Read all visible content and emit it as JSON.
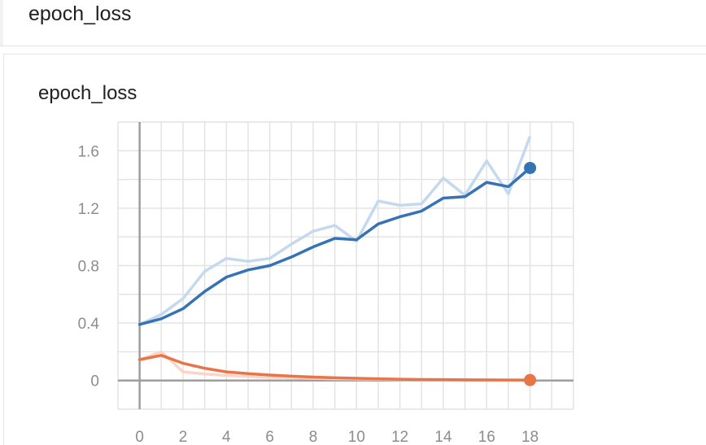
{
  "header": {
    "title": "epoch_loss"
  },
  "card": {
    "title": "epoch_loss"
  },
  "chart_data": {
    "type": "line",
    "title": "epoch_loss",
    "xlabel": "",
    "ylabel": "",
    "xlim": [
      -1,
      20
    ],
    "ylim": [
      -0.2,
      1.8
    ],
    "x_ticks": [
      0,
      2,
      4,
      6,
      8,
      10,
      12,
      14,
      16,
      18
    ],
    "y_ticks": [
      0,
      0.4,
      0.8,
      1.2,
      1.6
    ],
    "x_tick_labels": [
      "0",
      "2",
      "4",
      "6",
      "8",
      "10",
      "12",
      "14",
      "16",
      "18"
    ],
    "y_tick_labels": [
      "0",
      "0.4",
      "0.8",
      "1.2",
      "1.6"
    ],
    "grid": true,
    "legend": "none",
    "series": [
      {
        "color": "#3673b5",
        "raw_color": "#c5d9ee",
        "x": [
          0,
          1,
          2,
          3,
          4,
          5,
          6,
          7,
          8,
          9,
          10,
          11,
          12,
          13,
          14,
          15,
          16,
          17,
          18
        ],
        "values": [
          0.39,
          0.43,
          0.5,
          0.62,
          0.72,
          0.77,
          0.8,
          0.86,
          0.93,
          0.99,
          0.98,
          1.09,
          1.14,
          1.18,
          1.27,
          1.28,
          1.38,
          1.35,
          1.48
        ],
        "raw_values": [
          0.39,
          0.46,
          0.57,
          0.76,
          0.85,
          0.83,
          0.85,
          0.95,
          1.04,
          1.08,
          0.97,
          1.25,
          1.22,
          1.23,
          1.41,
          1.29,
          1.53,
          1.3,
          1.7
        ]
      },
      {
        "color": "#e8744a",
        "raw_color": "#f9d6c6",
        "x": [
          0,
          1,
          2,
          3,
          4,
          5,
          6,
          7,
          8,
          9,
          10,
          11,
          12,
          13,
          14,
          15,
          16,
          17,
          18
        ],
        "values": [
          0.145,
          0.175,
          0.12,
          0.085,
          0.06,
          0.048,
          0.038,
          0.03,
          0.024,
          0.019,
          0.015,
          0.012,
          0.009,
          0.007,
          0.006,
          0.005,
          0.004,
          0.003,
          0.003
        ],
        "raw_values": [
          0.145,
          0.2,
          0.06,
          0.045,
          0.035,
          0.028,
          0.022,
          0.018,
          0.015,
          0.012,
          0.01,
          0.008,
          0.006,
          0.005,
          0.004,
          0.004,
          0.003,
          0.003,
          0.002
        ]
      }
    ]
  }
}
